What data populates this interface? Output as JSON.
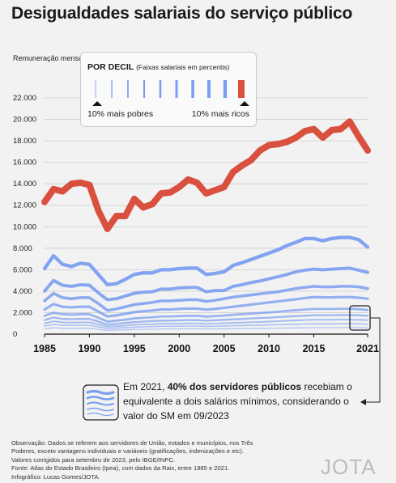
{
  "header": {
    "title": "Desigualdades salariais do serviço público"
  },
  "colors": {
    "top_decile": "#d9503f",
    "deciles": "#7a9ef0",
    "grid": "#cccccc",
    "background": "#f2f2f2"
  },
  "legend": {
    "title": "POR DECIL",
    "subtitle": "(Faixas salariais em percentis)",
    "low_label": "10% mais pobres",
    "high_label": "10% mais ricos"
  },
  "callout": {
    "text_pre": "Em 2021, ",
    "text_bold": "40% dos servidores públicos",
    "text_post": " recebiam o equivalente a dois salários mínimos, considerando o valor do SM em 09/2023"
  },
  "footnote": {
    "line1": "Observação: Dados se referem aos servidores de União, estados e municípios, nos Três Poderes, exceto vantagens individuais e variáveis (gratificações, indenizações e etc).",
    "line2": "Valores corrigidos para setembro de 2023, pelo IBGE/INPC.",
    "line3": "Fonte: Atlas do Estado Brasileiro (Ipea), com dados da Rais, entre 1985 e 2021.",
    "line4": "Infográfico: Lucas Gomes/JOTA."
  },
  "logo": "JOTA",
  "chart_data": {
    "type": "line",
    "title": "Desigualdades salariais do serviço público",
    "ylabel": "Remuneração mensal (em R$)",
    "xlabel": "",
    "xlim": [
      1985,
      2021
    ],
    "ylim": [
      0,
      22000
    ],
    "yticks": [
      0,
      2000,
      4000,
      6000,
      8000,
      10000,
      12000,
      14000,
      16000,
      18000,
      20000,
      22000
    ],
    "ytick_labels": [
      "0",
      "2.000",
      "4.000",
      "6.000",
      "8.000",
      "10.000",
      "12.000",
      "14.000",
      "16.000",
      "18.000",
      "20.000",
      "22.000"
    ],
    "xticks": [
      1985,
      1990,
      1995,
      2000,
      2005,
      2010,
      2015,
      2021
    ],
    "xtick_labels": [
      "1985",
      "1990",
      "1995",
      "2000",
      "2005",
      "2010",
      "2015",
      "2021"
    ],
    "grid": true,
    "x": [
      1985,
      1986,
      1987,
      1988,
      1989,
      1990,
      1991,
      1992,
      1993,
      1994,
      1995,
      1996,
      1997,
      1998,
      1999,
      2000,
      2001,
      2002,
      2003,
      2004,
      2005,
      2006,
      2007,
      2008,
      2009,
      2010,
      2011,
      2012,
      2013,
      2014,
      2015,
      2016,
      2017,
      2018,
      2019,
      2020,
      2021
    ],
    "series": [
      {
        "name": "",
        "values": [
          500,
          600,
          550,
          550,
          550,
          550,
          450,
          350,
          380,
          400,
          430,
          450,
          460,
          480,
          480,
          490,
          500,
          500,
          480,
          490,
          500,
          510,
          520,
          530,
          540,
          550,
          560,
          570,
          580,
          590,
          600,
          600,
          600,
          610,
          610,
          600,
          580
        ]
      },
      {
        "name": "",
        "values": [
          750,
          900,
          830,
          820,
          830,
          830,
          680,
          530,
          560,
          600,
          650,
          680,
          700,
          730,
          730,
          740,
          750,
          750,
          720,
          740,
          760,
          780,
          800,
          820,
          840,
          860,
          880,
          900,
          920,
          940,
          960,
          960,
          960,
          970,
          970,
          960,
          930
        ]
      },
      {
        "name": "",
        "values": [
          1000,
          1200,
          1100,
          1080,
          1100,
          1100,
          900,
          700,
          740,
          800,
          860,
          900,
          930,
          970,
          970,
          990,
          1000,
          1000,
          960,
          990,
          1020,
          1050,
          1080,
          1110,
          1140,
          1170,
          1200,
          1240,
          1280,
          1310,
          1340,
          1340,
          1340,
          1350,
          1350,
          1330,
          1300
        ]
      },
      {
        "name": "",
        "values": [
          1300,
          1550,
          1420,
          1400,
          1420,
          1420,
          1170,
          900,
          960,
          1040,
          1120,
          1170,
          1210,
          1260,
          1260,
          1290,
          1300,
          1300,
          1250,
          1290,
          1330,
          1380,
          1420,
          1460,
          1500,
          1540,
          1580,
          1630,
          1680,
          1720,
          1760,
          1760,
          1760,
          1780,
          1780,
          1760,
          1710
        ]
      },
      {
        "name": "",
        "values": [
          1700,
          2000,
          1850,
          1820,
          1850,
          1850,
          1520,
          1170,
          1250,
          1350,
          1460,
          1520,
          1570,
          1640,
          1640,
          1680,
          1700,
          1700,
          1630,
          1680,
          1730,
          1800,
          1860,
          1910,
          1970,
          2030,
          2090,
          2160,
          2230,
          2290,
          2350,
          2340,
          2340,
          2360,
          2360,
          2330,
          2250
        ]
      },
      {
        "name": "",
        "values": [
          2300,
          2800,
          2550,
          2500,
          2550,
          2550,
          2100,
          1650,
          1750,
          1900,
          2050,
          2130,
          2200,
          2300,
          2300,
          2350,
          2380,
          2380,
          2280,
          2350,
          2450,
          2550,
          2650,
          2750,
          2850,
          2950,
          3050,
          3150,
          3250,
          3350,
          3450,
          3420,
          3420,
          3450,
          3450,
          3400,
          3300
        ]
      },
      {
        "name": "",
        "values": [
          3100,
          3800,
          3400,
          3300,
          3400,
          3400,
          2850,
          2200,
          2350,
          2550,
          2750,
          2850,
          2950,
          3100,
          3100,
          3150,
          3200,
          3200,
          3050,
          3150,
          3300,
          3450,
          3550,
          3650,
          3750,
          3850,
          3950,
          4100,
          4250,
          4350,
          4450,
          4400,
          4400,
          4450,
          4450,
          4400,
          4250
        ]
      },
      {
        "name": "",
        "values": [
          4000,
          5000,
          4550,
          4450,
          4600,
          4550,
          3850,
          3200,
          3300,
          3550,
          3800,
          3900,
          3950,
          4200,
          4200,
          4300,
          4350,
          4350,
          3950,
          4050,
          4050,
          4450,
          4600,
          4800,
          4950,
          5150,
          5350,
          5550,
          5800,
          5950,
          6050,
          6000,
          6050,
          6100,
          6150,
          5950,
          5750
        ]
      },
      {
        "name": "",
        "values": [
          6100,
          7300,
          6500,
          6300,
          6600,
          6500,
          5550,
          4600,
          4700,
          5100,
          5550,
          5700,
          5700,
          6000,
          6000,
          6100,
          6150,
          6150,
          5550,
          5650,
          5800,
          6400,
          6650,
          6950,
          7250,
          7550,
          7850,
          8250,
          8550,
          8900,
          8900,
          8700,
          8900,
          9000,
          9000,
          8800,
          8100
        ]
      },
      {
        "name": "",
        "values": [
          12300,
          13500,
          13300,
          14000,
          14100,
          13900,
          11500,
          9800,
          11000,
          11000,
          12600,
          11800,
          12100,
          13100,
          13200,
          13700,
          14400,
          14100,
          13100,
          13400,
          13700,
          15100,
          15700,
          16200,
          17100,
          17600,
          17700,
          17900,
          18300,
          18900,
          19100,
          18300,
          19000,
          19100,
          19800,
          18400,
          17100
        ]
      }
    ],
    "annotations": [
      "Em 2021, 40% dos servidores públicos recebiam o equivalente a dois salários mínimos, considerando o valor do SM em 09/2023"
    ]
  }
}
